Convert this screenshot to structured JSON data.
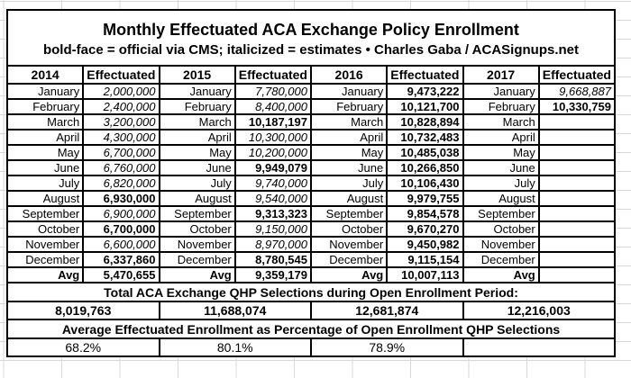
{
  "title": "Monthly Effectuated ACA Exchange Policy Enrollment",
  "subtitle": "bold-face = official via CMS; italicized = estimates  •  Charles Gaba / ACASignups.net",
  "colors": {
    "border": "#000000",
    "background": "#ffffff",
    "gridline": "#d8d8d8",
    "text": "#000000"
  },
  "enrollment_table": {
    "header": {
      "year_labels": [
        "2014",
        "2015",
        "2016",
        "2017"
      ],
      "value_label": "Effectuated"
    },
    "months": [
      "January",
      "February",
      "March",
      "April",
      "May",
      "June",
      "July",
      "August",
      "September",
      "October",
      "November",
      "December"
    ],
    "avg_label": "Avg",
    "years": [
      {
        "year": "2014",
        "values": [
          {
            "text": "2,000,000",
            "style": "italic"
          },
          {
            "text": "2,400,000",
            "style": "italic"
          },
          {
            "text": "3,200,000",
            "style": "italic"
          },
          {
            "text": "4,300,000",
            "style": "italic"
          },
          {
            "text": "6,700,000",
            "style": "italic"
          },
          {
            "text": "6,760,000",
            "style": "italic"
          },
          {
            "text": "6,820,000",
            "style": "italic"
          },
          {
            "text": "6,930,000",
            "style": "bold"
          },
          {
            "text": "6,900,000",
            "style": "italic"
          },
          {
            "text": "6,700,000",
            "style": "bold"
          },
          {
            "text": "6,600,000",
            "style": "italic"
          },
          {
            "text": "6,337,860",
            "style": "bold"
          }
        ],
        "avg": {
          "text": "5,470,655",
          "style": "bold"
        }
      },
      {
        "year": "2015",
        "values": [
          {
            "text": "7,780,000",
            "style": "italic"
          },
          {
            "text": "8,400,000",
            "style": "italic"
          },
          {
            "text": "10,187,197",
            "style": "bold"
          },
          {
            "text": "10,300,000",
            "style": "italic"
          },
          {
            "text": "10,200,000",
            "style": "italic"
          },
          {
            "text": "9,949,079",
            "style": "bold"
          },
          {
            "text": "9,740,000",
            "style": "italic"
          },
          {
            "text": "9,540,000",
            "style": "italic"
          },
          {
            "text": "9,313,323",
            "style": "bold"
          },
          {
            "text": "9,150,000",
            "style": "italic"
          },
          {
            "text": "8,970,000",
            "style": "italic"
          },
          {
            "text": "8,780,545",
            "style": "bold"
          }
        ],
        "avg": {
          "text": "9,359,179",
          "style": "bold"
        }
      },
      {
        "year": "2016",
        "values": [
          {
            "text": "9,473,222",
            "style": "bold"
          },
          {
            "text": "10,121,700",
            "style": "bold"
          },
          {
            "text": "10,828,894",
            "style": "bold"
          },
          {
            "text": "10,732,483",
            "style": "bold"
          },
          {
            "text": "10,485,038",
            "style": "bold"
          },
          {
            "text": "10,266,850",
            "style": "bold"
          },
          {
            "text": "10,106,430",
            "style": "bold"
          },
          {
            "text": "9,979,755",
            "style": "bold"
          },
          {
            "text": "9,854,578",
            "style": "bold"
          },
          {
            "text": "9,670,270",
            "style": "bold"
          },
          {
            "text": "9,450,982",
            "style": "bold"
          },
          {
            "text": "9,115,154",
            "style": "bold"
          }
        ],
        "avg": {
          "text": "10,007,113",
          "style": "bold"
        }
      },
      {
        "year": "2017",
        "values": [
          {
            "text": "9,668,887",
            "style": "italic"
          },
          {
            "text": "10,330,759",
            "style": "bold"
          },
          {
            "text": "",
            "style": "normal"
          },
          {
            "text": "",
            "style": "normal"
          },
          {
            "text": "",
            "style": "normal"
          },
          {
            "text": "",
            "style": "normal"
          },
          {
            "text": "",
            "style": "normal"
          },
          {
            "text": "",
            "style": "normal"
          },
          {
            "text": "",
            "style": "normal"
          },
          {
            "text": "",
            "style": "normal"
          },
          {
            "text": "",
            "style": "normal"
          },
          {
            "text": "",
            "style": "normal"
          }
        ],
        "avg": {
          "text": "",
          "style": "normal"
        }
      }
    ]
  },
  "totals_section": {
    "heading": "Total ACA Exchange QHP Selections during Open Enrollment Period:",
    "values": [
      "8,019,763",
      "11,688,074",
      "12,681,874",
      "12,216,003"
    ]
  },
  "percentage_section": {
    "heading": "Average Effectuated Enrollment as Percentage of Open Enrollment QHP Selections",
    "values": [
      "68.2%",
      "80.1%",
      "78.9%",
      ""
    ]
  }
}
